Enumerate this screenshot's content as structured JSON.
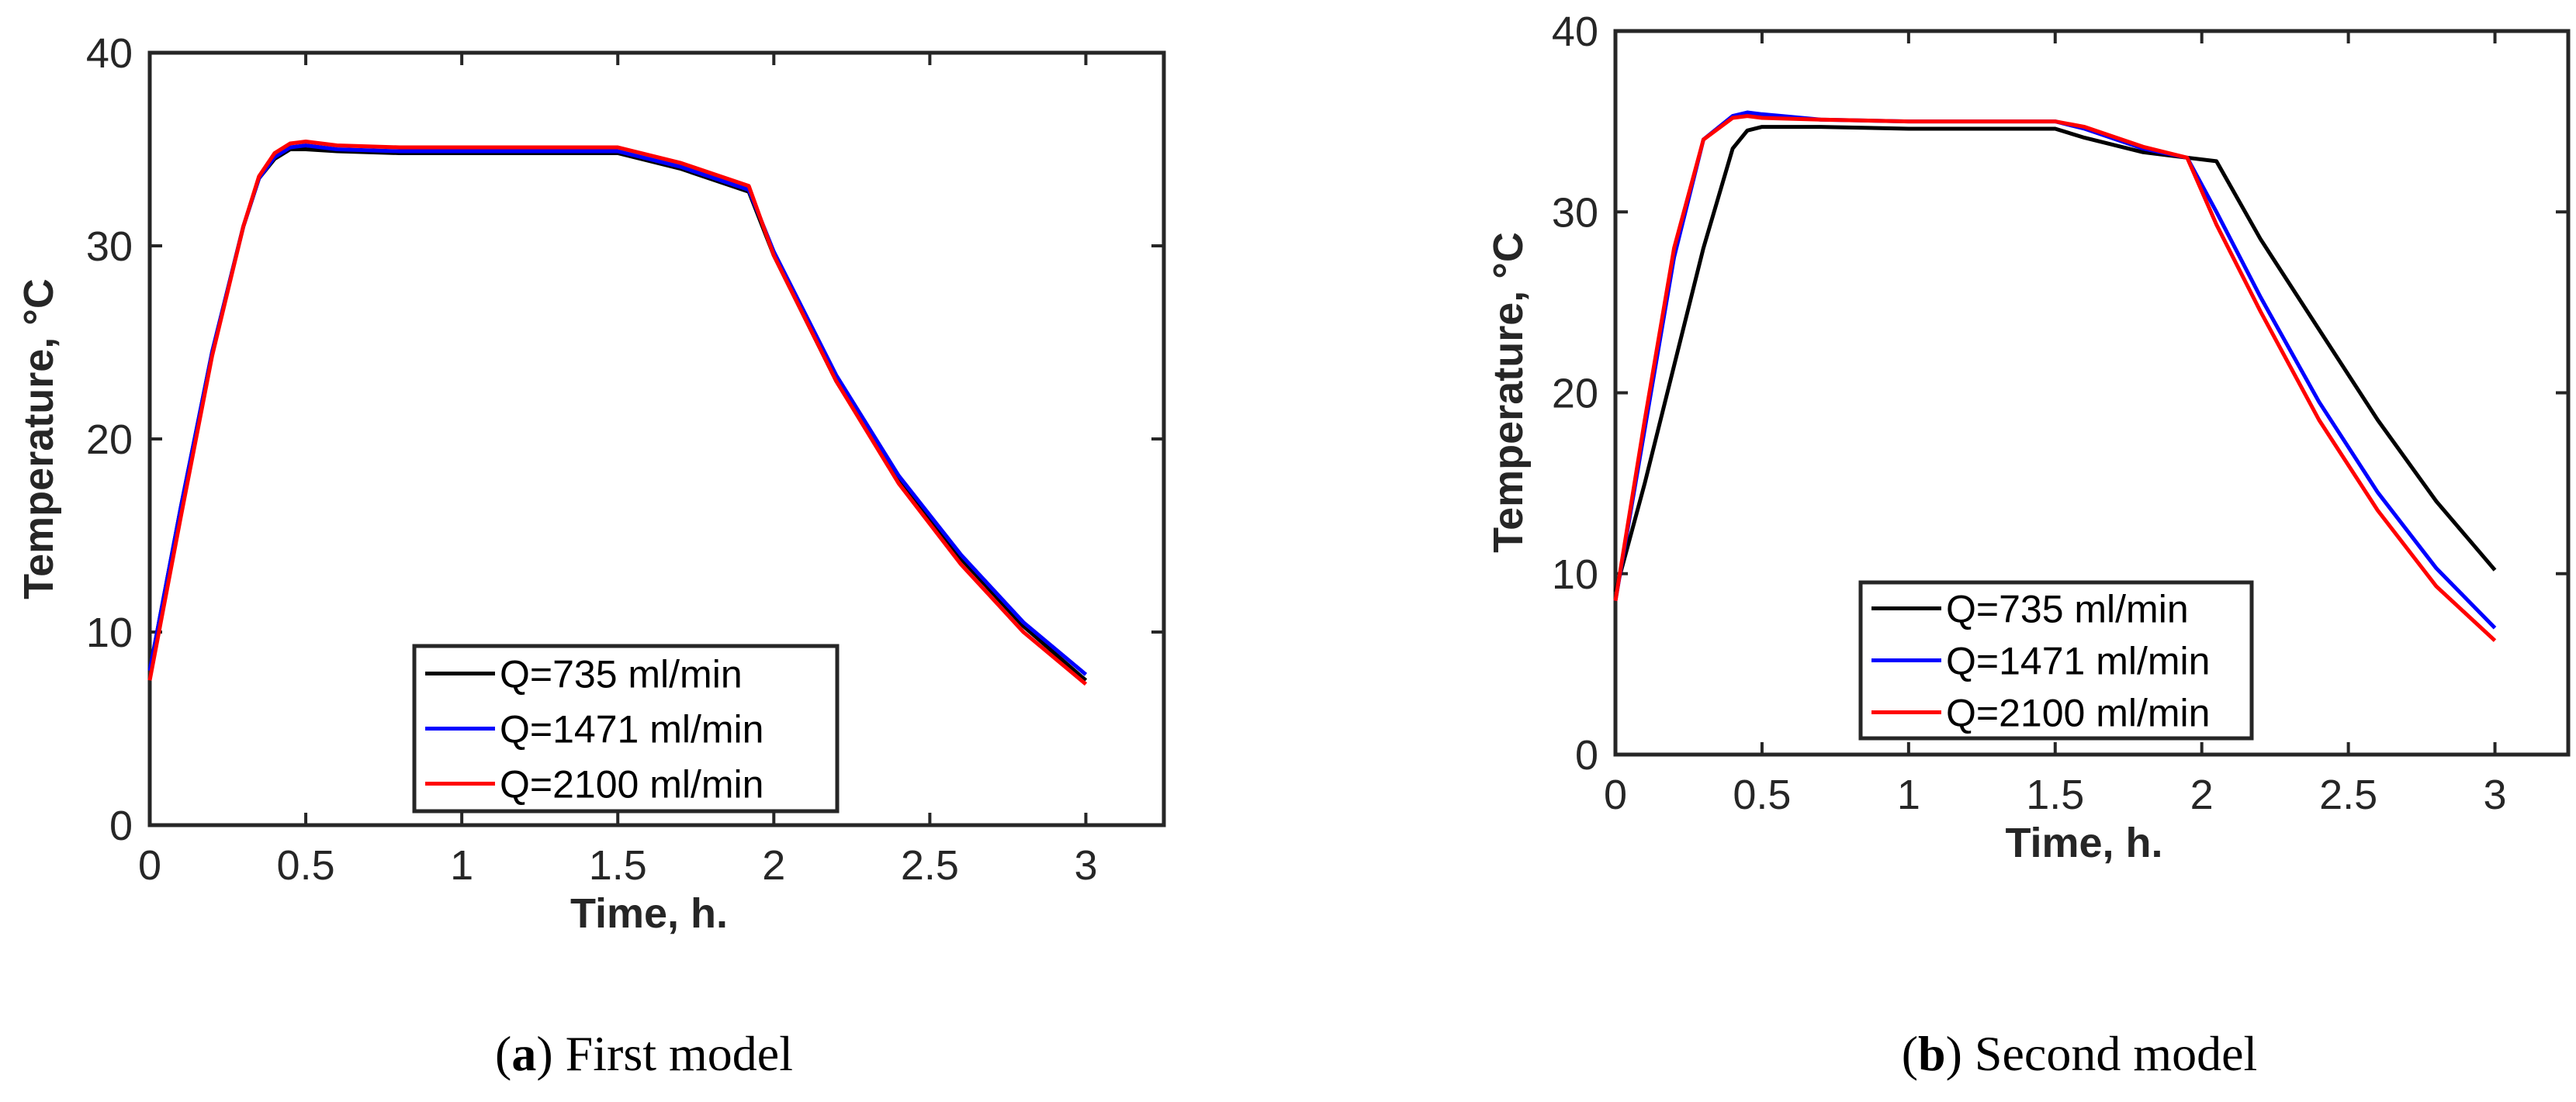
{
  "colors": {
    "Q=735 ml/min": "#000000",
    "Q=1471 ml/min": "#0000ff",
    "Q=2100 ml/min": "#ff0000"
  },
  "chart_data": [
    {
      "type": "line",
      "panel_letter": "a",
      "caption": "First model",
      "xlabel": "Time, h.",
      "ylabel": "Temperature, °C",
      "xlim": [
        0,
        3.25
      ],
      "ylim": [
        0,
        40
      ],
      "xticks": [
        "0",
        "0.5",
        "1",
        "1.5",
        "2",
        "2.5",
        "3"
      ],
      "xtick_values": [
        0,
        0.5,
        1,
        1.5,
        2,
        2.5,
        3
      ],
      "yticks": [
        "0",
        "10",
        "20",
        "30",
        "40"
      ],
      "ytick_values": [
        0,
        10,
        20,
        30,
        40
      ],
      "legend_position": "bottom-right",
      "series": [
        {
          "name": "Q=735 ml/min",
          "x": [
            0,
            0.1,
            0.2,
            0.3,
            0.35,
            0.4,
            0.45,
            0.5,
            0.6,
            0.8,
            1.0,
            1.2,
            1.4,
            1.5,
            1.7,
            1.92,
            2.0,
            2.2,
            2.4,
            2.6,
            2.8,
            3.0
          ],
          "y": [
            8.0,
            16.5,
            24.5,
            31.0,
            33.5,
            34.5,
            35.0,
            35.0,
            34.9,
            34.8,
            34.8,
            34.8,
            34.8,
            34.8,
            34.0,
            32.8,
            29.5,
            23.0,
            17.8,
            13.8,
            10.3,
            7.5
          ]
        },
        {
          "name": "Q=1471 ml/min",
          "x": [
            0,
            0.1,
            0.2,
            0.3,
            0.35,
            0.4,
            0.45,
            0.5,
            0.6,
            0.8,
            1.0,
            1.2,
            1.4,
            1.5,
            1.7,
            1.92,
            2.0,
            2.2,
            2.4,
            2.6,
            2.8,
            3.0
          ],
          "y": [
            8.0,
            16.5,
            24.5,
            31.0,
            33.5,
            34.6,
            35.1,
            35.2,
            35.0,
            34.9,
            34.9,
            34.9,
            34.9,
            34.9,
            34.1,
            32.9,
            29.7,
            23.3,
            18.1,
            14.0,
            10.5,
            7.8
          ]
        },
        {
          "name": "Q=2100 ml/min",
          "x": [
            0,
            0.1,
            0.2,
            0.3,
            0.35,
            0.4,
            0.45,
            0.5,
            0.6,
            0.8,
            1.0,
            1.2,
            1.4,
            1.5,
            1.7,
            1.92,
            2.0,
            2.2,
            2.4,
            2.6,
            2.8,
            3.0
          ],
          "y": [
            7.5,
            16.0,
            24.3,
            31.0,
            33.6,
            34.8,
            35.3,
            35.4,
            35.2,
            35.1,
            35.1,
            35.1,
            35.1,
            35.1,
            34.3,
            33.1,
            29.5,
            23.0,
            17.7,
            13.5,
            10.0,
            7.3
          ]
        }
      ]
    },
    {
      "type": "line",
      "panel_letter": "b",
      "caption": "Second model",
      "xlabel": "Time, h.",
      "ylabel": "Temperature, °C",
      "xlim": [
        0,
        3.25
      ],
      "ylim": [
        0,
        40
      ],
      "xticks": [
        "0",
        "0.5",
        "1",
        "1.5",
        "2",
        "2.5",
        "3"
      ],
      "xtick_values": [
        0,
        0.5,
        1,
        1.5,
        2,
        2.5,
        3
      ],
      "yticks": [
        "0",
        "10",
        "20",
        "30",
        "40"
      ],
      "ytick_values": [
        0,
        10,
        20,
        30,
        40
      ],
      "legend_position": "bottom-center",
      "series": [
        {
          "name": "Q=735 ml/min",
          "x": [
            0,
            0.1,
            0.2,
            0.3,
            0.4,
            0.45,
            0.5,
            0.7,
            1.0,
            1.3,
            1.5,
            1.6,
            1.8,
            1.95,
            2.05,
            2.2,
            2.4,
            2.6,
            2.8,
            3.0
          ],
          "y": [
            9.0,
            15.0,
            21.5,
            28.0,
            33.5,
            34.5,
            34.7,
            34.7,
            34.6,
            34.6,
            34.6,
            34.1,
            33.3,
            33.0,
            32.8,
            28.5,
            23.5,
            18.5,
            14.0,
            10.2
          ]
        },
        {
          "name": "Q=1471 ml/min",
          "x": [
            0,
            0.1,
            0.2,
            0.3,
            0.4,
            0.45,
            0.5,
            0.7,
            1.0,
            1.3,
            1.5,
            1.6,
            1.8,
            1.95,
            2.05,
            2.2,
            2.4,
            2.6,
            2.8,
            3.0
          ],
          "y": [
            8.5,
            18.0,
            27.5,
            34.0,
            35.3,
            35.5,
            35.4,
            35.1,
            35.0,
            35.0,
            35.0,
            34.6,
            33.5,
            33.0,
            30.0,
            25.3,
            19.5,
            14.5,
            10.3,
            7.0
          ]
        },
        {
          "name": "Q=2100 ml/min",
          "x": [
            0,
            0.1,
            0.2,
            0.3,
            0.4,
            0.45,
            0.5,
            0.7,
            1.0,
            1.3,
            1.5,
            1.6,
            1.8,
            1.95,
            2.05,
            2.2,
            2.4,
            2.6,
            2.8,
            3.0
          ],
          "y": [
            8.5,
            18.5,
            28.0,
            34.0,
            35.2,
            35.3,
            35.2,
            35.1,
            35.0,
            35.0,
            35.0,
            34.7,
            33.6,
            33.0,
            29.3,
            24.5,
            18.5,
            13.5,
            9.3,
            6.3
          ]
        }
      ]
    }
  ]
}
